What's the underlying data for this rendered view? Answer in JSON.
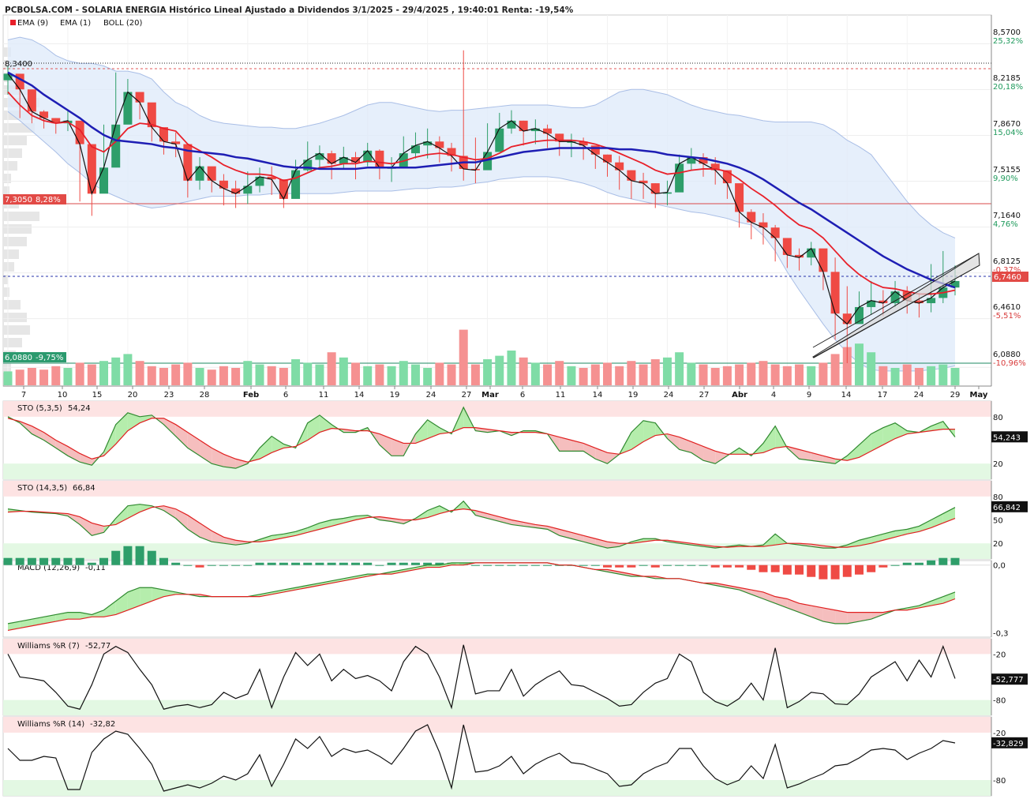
{
  "title": "PCBOLSA.COM - SOLARIA ENERGIA Histórico Lineal Ajustado a Dividendos 3/1/2025 - 29/4/2025 , 19:40:01 Renta: -19,54%",
  "legend": [
    {
      "label": "EMA (9)",
      "color": "#e8202a"
    },
    {
      "label": "EMA (1)",
      "color": "#111111"
    },
    {
      "label": "BOLL (20)",
      "color": "#1e1eb4"
    }
  ],
  "colors": {
    "up": "#2e9e6a",
    "down": "#ef4a44",
    "ema9": "#e8202a",
    "boll": "#1e1eb4",
    "band_fill": "#ddeafa",
    "band_line": "#a9bee6"
  },
  "price_axis": [
    {
      "price": "8,5700",
      "pct": "25,32%",
      "pos": true
    },
    {
      "price": "8,2185",
      "pct": "20,18%",
      "pos": true
    },
    {
      "price": "7,8670",
      "pct": "15,04%",
      "pos": true
    },
    {
      "price": "7,5155",
      "pct": "9,90%",
      "pos": true
    },
    {
      "price": "7,1640",
      "pct": "4,76%",
      "pos": true
    },
    {
      "price": "6,8125",
      "pct": "-0,37%",
      "pos": false
    },
    {
      "price": "6,4610",
      "pct": "-5,51%",
      "pos": false
    },
    {
      "price": "6,0880",
      "pct": "-10,96%",
      "pos": false
    }
  ],
  "ref_lines": {
    "max_label": "8,3400",
    "ref_label": "7,3050",
    "ref_pct": "8,28%",
    "min_label": "6,0880",
    "min_pct": "-9,75%",
    "last_label": "6,7460"
  },
  "x_ticks": [
    "7",
    "10",
    "15",
    "20",
    "23",
    "28",
    "Feb",
    "6",
    "11",
    "14",
    "19",
    "24",
    "27",
    "Mar",
    "6",
    "11",
    "14",
    "19",
    "24",
    "27",
    "Abr",
    "4",
    "9",
    "14",
    "17",
    "24",
    "29",
    "May"
  ],
  "panels": {
    "sto1": {
      "label": "STO (5,3,5)",
      "value": "54,24",
      "axis_value": "54,243",
      "ticks": [
        "80",
        "20"
      ]
    },
    "sto2": {
      "label": "STO (14,3,5)",
      "value": "66,84",
      "axis_value": "66,842",
      "ticks": [
        "80",
        "50",
        "20"
      ]
    },
    "macd": {
      "label": "MACD (12,26,9)",
      "value": "-0,11",
      "ticks": [
        "0,0",
        "-0,3"
      ]
    },
    "wr7": {
      "label": "Williams %R (7)",
      "value": "-52,77",
      "axis_value": "-52,777",
      "ticks": [
        "-20",
        "-80"
      ]
    },
    "wr14": {
      "label": "Williams %R (14)",
      "value": "-32,82",
      "axis_value": "-32,829",
      "ticks": [
        "-20",
        "-80"
      ]
    }
  },
  "chart_data": {
    "type": "candlestick",
    "x": [
      "3/1",
      "7/1",
      "8/1",
      "9/1",
      "10/1",
      "13/1",
      "14/1",
      "15/1",
      "16/1",
      "17/1",
      "20/1",
      "21/1",
      "22/1",
      "23/1",
      "24/1",
      "27/1",
      "28/1",
      "29/1",
      "30/1",
      "31/1",
      "3/2",
      "4/2",
      "5/2",
      "6/2",
      "7/2",
      "10/2",
      "11/2",
      "12/2",
      "13/2",
      "14/2",
      "17/2",
      "18/2",
      "19/2",
      "20/2",
      "21/2",
      "24/2",
      "25/2",
      "26/2",
      "27/2",
      "28/2",
      "3/3",
      "4/3",
      "5/3",
      "6/3",
      "7/3",
      "10/3",
      "11/3",
      "12/3",
      "13/3",
      "14/3",
      "17/3",
      "18/3",
      "19/3",
      "20/3",
      "21/3",
      "24/3",
      "25/3",
      "26/3",
      "27/3",
      "28/3",
      "31/3",
      "1/4",
      "2/4",
      "3/4",
      "4/4",
      "7/4",
      "8/4",
      "9/4",
      "10/4",
      "11/4",
      "14/4",
      "15/4",
      "16/4",
      "17/4",
      "22/4",
      "23/4",
      "24/4",
      "25/4",
      "28/4",
      "29/4"
    ],
    "close": [
      8.34,
      8.22,
      8.05,
      8.0,
      7.96,
      7.98,
      7.8,
      7.42,
      7.62,
      7.95,
      8.2,
      8.12,
      7.93,
      7.82,
      7.8,
      7.52,
      7.63,
      7.52,
      7.46,
      7.42,
      7.48,
      7.55,
      7.53,
      7.38,
      7.6,
      7.68,
      7.73,
      7.65,
      7.7,
      7.66,
      7.75,
      7.62,
      7.62,
      7.73,
      7.79,
      7.82,
      7.77,
      7.71,
      7.61,
      7.6,
      7.74,
      7.92,
      7.98,
      7.9,
      7.92,
      7.88,
      7.82,
      7.82,
      7.79,
      7.72,
      7.66,
      7.6,
      7.52,
      7.5,
      7.42,
      7.43,
      7.65,
      7.7,
      7.65,
      7.6,
      7.5,
      7.28,
      7.2,
      7.16,
      7.08,
      6.95,
      6.93,
      7.0,
      6.82,
      6.5,
      6.42,
      6.55,
      6.6,
      6.58,
      6.67,
      6.6,
      6.58,
      6.62,
      6.7,
      6.75
    ],
    "high": [
      8.4,
      8.3,
      8.16,
      8.06,
      8.0,
      8.06,
      7.95,
      7.6,
      7.95,
      8.35,
      8.3,
      8.2,
      8.02,
      7.92,
      7.89,
      7.61,
      7.7,
      7.6,
      7.57,
      7.52,
      7.59,
      7.62,
      7.63,
      7.49,
      7.68,
      7.82,
      7.79,
      7.75,
      7.78,
      7.74,
      7.81,
      7.76,
      7.7,
      7.86,
      7.89,
      7.92,
      7.86,
      7.81,
      8.52,
      7.85,
      7.96,
      8.04,
      8.06,
      7.98,
      7.99,
      7.95,
      7.88,
      7.88,
      7.85,
      7.78,
      7.72,
      7.71,
      7.6,
      7.58,
      7.5,
      7.52,
      7.72,
      7.77,
      7.73,
      7.7,
      7.58,
      7.38,
      7.3,
      7.27,
      7.18,
      7.03,
      7.0,
      7.05,
      6.91,
      6.93,
      6.71,
      6.67,
      6.75,
      6.68,
      6.75,
      6.71,
      6.66,
      6.88,
      6.98,
      6.87
    ],
    "low": [
      8.18,
      8.0,
      7.96,
      7.92,
      7.88,
      7.9,
      7.36,
      7.25,
      7.48,
      7.72,
      8.07,
      7.99,
      7.82,
      7.72,
      7.7,
      7.39,
      7.45,
      7.43,
      7.33,
      7.31,
      7.34,
      7.43,
      7.41,
      7.31,
      7.48,
      7.59,
      7.62,
      7.53,
      7.61,
      7.53,
      7.63,
      7.53,
      7.51,
      7.62,
      7.69,
      7.69,
      7.66,
      7.59,
      7.52,
      7.5,
      7.61,
      7.82,
      7.88,
      7.79,
      7.8,
      7.77,
      7.71,
      7.7,
      7.68,
      7.61,
      7.55,
      7.45,
      7.38,
      7.38,
      7.31,
      7.33,
      7.55,
      7.6,
      7.55,
      7.49,
      7.38,
      7.16,
      7.07,
      7.03,
      6.9,
      6.85,
      6.83,
      6.87,
      6.68,
      6.3,
      6.12,
      6.45,
      6.49,
      6.48,
      6.55,
      6.5,
      6.47,
      6.51,
      6.58,
      6.64
    ],
    "volume": [
      0.8,
      0.9,
      1.0,
      0.9,
      1.1,
      1.0,
      1.3,
      1.2,
      1.4,
      1.6,
      1.8,
      1.4,
      1.1,
      1.0,
      1.2,
      1.3,
      1.0,
      0.9,
      1.1,
      1.0,
      1.4,
      1.2,
      1.1,
      1.0,
      1.5,
      1.3,
      1.2,
      1.9,
      1.6,
      1.3,
      1.1,
      1.2,
      1.1,
      1.4,
      1.2,
      1.0,
      1.3,
      1.2,
      3.2,
      1.2,
      1.5,
      1.7,
      2.0,
      1.6,
      1.3,
      1.2,
      1.4,
      1.1,
      1.0,
      1.2,
      1.3,
      1.1,
      1.4,
      1.2,
      1.5,
      1.6,
      1.9,
      1.3,
      1.2,
      1.0,
      1.1,
      1.2,
      1.3,
      1.4,
      1.2,
      1.1,
      1.2,
      1.1,
      1.3,
      1.8,
      2.2,
      2.4,
      1.9,
      1.1,
      1.0,
      1.2,
      1.0,
      1.1,
      1.2,
      1.0
    ],
    "ema9": [
      8.2,
      8.1,
      8.02,
      7.98,
      7.96,
      7.97,
      7.91,
      7.78,
      7.74,
      7.82,
      7.92,
      7.96,
      7.95,
      7.92,
      7.9,
      7.8,
      7.75,
      7.7,
      7.64,
      7.6,
      7.57,
      7.57,
      7.56,
      7.52,
      7.54,
      7.58,
      7.62,
      7.63,
      7.65,
      7.65,
      7.67,
      7.66,
      7.65,
      7.67,
      7.7,
      7.72,
      7.73,
      7.72,
      7.7,
      7.68,
      7.69,
      7.73,
      7.78,
      7.8,
      7.82,
      7.83,
      7.83,
      7.83,
      7.82,
      7.8,
      7.77,
      7.73,
      7.69,
      7.65,
      7.6,
      7.57,
      7.58,
      7.6,
      7.61,
      7.61,
      7.59,
      7.53,
      7.46,
      7.4,
      7.33,
      7.25,
      7.18,
      7.15,
      7.08,
      6.98,
      6.88,
      6.8,
      6.74,
      6.7,
      6.69,
      6.67,
      6.65,
      6.65,
      6.66,
      6.68
    ],
    "boll_mid": [
      8.35,
      8.3,
      8.25,
      8.18,
      8.12,
      8.06,
      8.0,
      7.93,
      7.87,
      7.83,
      7.82,
      7.81,
      7.8,
      7.78,
      7.77,
      7.75,
      7.74,
      7.73,
      7.72,
      7.7,
      7.69,
      7.67,
      7.65,
      7.63,
      7.62,
      7.62,
      7.61,
      7.61,
      7.61,
      7.61,
      7.62,
      7.62,
      7.62,
      7.62,
      7.62,
      7.63,
      7.64,
      7.65,
      7.66,
      7.66,
      7.68,
      7.7,
      7.72,
      7.74,
      7.75,
      7.76,
      7.77,
      7.77,
      7.77,
      7.77,
      7.77,
      7.76,
      7.76,
      7.75,
      7.74,
      7.72,
      7.71,
      7.7,
      7.69,
      7.67,
      7.65,
      7.62,
      7.58,
      7.53,
      7.47,
      7.41,
      7.35,
      7.3,
      7.24,
      7.18,
      7.12,
      7.06,
      7.0,
      6.94,
      6.89,
      6.84,
      6.8,
      6.76,
      6.73,
      6.7
    ],
    "boll_up": [
      8.6,
      8.62,
      8.6,
      8.55,
      8.48,
      8.44,
      8.42,
      8.42,
      8.4,
      8.36,
      8.36,
      8.34,
      8.3,
      8.2,
      8.12,
      8.08,
      8.02,
      7.98,
      7.96,
      7.95,
      7.94,
      7.93,
      7.93,
      7.92,
      7.92,
      7.94,
      7.96,
      7.99,
      8.02,
      8.06,
      8.1,
      8.12,
      8.12,
      8.1,
      8.08,
      8.06,
      8.05,
      8.06,
      8.06,
      8.07,
      8.08,
      8.09,
      8.1,
      8.1,
      8.1,
      8.1,
      8.09,
      8.08,
      8.08,
      8.1,
      8.15,
      8.2,
      8.22,
      8.22,
      8.2,
      8.18,
      8.14,
      8.1,
      8.07,
      8.05,
      8.03,
      8.02,
      8.0,
      7.98,
      7.97,
      7.97,
      7.97,
      7.97,
      7.95,
      7.9,
      7.83,
      7.78,
      7.72,
      7.6,
      7.48,
      7.36,
      7.26,
      7.18,
      7.12,
      7.08
    ],
    "boll_low": [
      8.05,
      7.98,
      7.9,
      7.82,
      7.74,
      7.65,
      7.58,
      7.5,
      7.44,
      7.4,
      7.36,
      7.33,
      7.31,
      7.32,
      7.34,
      7.36,
      7.38,
      7.4,
      7.4,
      7.4,
      7.41,
      7.41,
      7.42,
      7.42,
      7.42,
      7.42,
      7.42,
      7.42,
      7.43,
      7.44,
      7.44,
      7.44,
      7.44,
      7.45,
      7.46,
      7.46,
      7.47,
      7.47,
      7.48,
      7.5,
      7.51,
      7.53,
      7.54,
      7.55,
      7.55,
      7.55,
      7.54,
      7.52,
      7.5,
      7.47,
      7.43,
      7.4,
      7.38,
      7.36,
      7.34,
      7.32,
      7.3,
      7.28,
      7.27,
      7.25,
      7.23,
      7.2,
      7.18,
      7.1,
      6.98,
      6.82,
      6.68,
      6.55,
      6.42,
      6.3,
      6.2,
      6.12,
      6.07,
      6.06,
      6.06,
      6.06,
      6.06,
      6.07,
      6.08,
      6.1
    ],
    "sto_5_3_5": {
      "k": [
        80,
        72,
        58,
        50,
        40,
        30,
        22,
        18,
        35,
        70,
        85,
        80,
        82,
        70,
        55,
        40,
        30,
        20,
        16,
        14,
        20,
        40,
        55,
        45,
        40,
        72,
        82,
        70,
        60,
        60,
        66,
        44,
        30,
        30,
        58,
        76,
        66,
        58,
        92,
        62,
        60,
        62,
        56,
        62,
        62,
        58,
        36,
        36,
        36,
        26,
        20,
        32,
        60,
        75,
        72,
        52,
        38,
        34,
        24,
        20,
        30,
        40,
        30,
        46,
        68,
        40,
        26,
        24,
        22,
        20,
        30,
        44,
        58,
        66,
        72,
        62,
        60,
        68,
        74,
        54
      ],
      "d": [
        78,
        74,
        68,
        60,
        50,
        42,
        33,
        26,
        30,
        45,
        62,
        72,
        78,
        78,
        70,
        60,
        50,
        40,
        32,
        26,
        22,
        26,
        34,
        40,
        42,
        50,
        60,
        65,
        64,
        62,
        62,
        58,
        52,
        46,
        46,
        52,
        58,
        60,
        66,
        66,
        64,
        62,
        60,
        60,
        60,
        58,
        54,
        50,
        46,
        40,
        34,
        32,
        38,
        48,
        56,
        58,
        54,
        48,
        42,
        36,
        32,
        32,
        32,
        34,
        40,
        42,
        38,
        34,
        30,
        26,
        24,
        28,
        36,
        44,
        52,
        58,
        60,
        62,
        64,
        64
      ]
    },
    "sto_14_3_5": {
      "k": [
        64,
        62,
        60,
        59,
        58,
        55,
        44,
        30,
        34,
        52,
        68,
        70,
        68,
        62,
        52,
        38,
        28,
        22,
        20,
        18,
        20,
        25,
        30,
        32,
        35,
        40,
        46,
        50,
        52,
        55,
        56,
        50,
        48,
        45,
        52,
        62,
        68,
        60,
        74,
        56,
        52,
        48,
        44,
        42,
        40,
        38,
        30,
        26,
        22,
        18,
        14,
        16,
        22,
        26,
        26,
        22,
        20,
        18,
        16,
        14,
        16,
        18,
        16,
        18,
        32,
        20,
        18,
        16,
        14,
        14,
        18,
        24,
        28,
        32,
        36,
        38,
        42,
        50,
        58,
        66
      ],
      "d": [
        60,
        61,
        61,
        60,
        59,
        58,
        54,
        46,
        42,
        44,
        52,
        60,
        66,
        68,
        64,
        56,
        46,
        36,
        28,
        24,
        22,
        22,
        24,
        27,
        30,
        34,
        38,
        42,
        46,
        50,
        53,
        54,
        52,
        50,
        50,
        53,
        58,
        62,
        64,
        62,
        58,
        54,
        50,
        47,
        44,
        42,
        38,
        34,
        30,
        26,
        22,
        20,
        20,
        22,
        24,
        24,
        22,
        20,
        18,
        16,
        15,
        16,
        16,
        16,
        18,
        20,
        20,
        19,
        17,
        15,
        15,
        17,
        20,
        24,
        28,
        32,
        35,
        40,
        46,
        52
      ]
    },
    "macd": {
      "macd": [
        -0.26,
        -0.25,
        -0.24,
        -0.23,
        -0.22,
        -0.21,
        -0.21,
        -0.22,
        -0.2,
        -0.16,
        -0.12,
        -0.1,
        -0.1,
        -0.11,
        -0.12,
        -0.13,
        -0.14,
        -0.14,
        -0.14,
        -0.14,
        -0.14,
        -0.13,
        -0.12,
        -0.11,
        -0.1,
        -0.09,
        -0.08,
        -0.07,
        -0.06,
        -0.05,
        -0.04,
        -0.04,
        -0.03,
        -0.02,
        -0.01,
        0.0,
        0.0,
        0.01,
        0.01,
        0.01,
        0.01,
        0.01,
        0.01,
        0.01,
        0.01,
        0.01,
        0.0,
        0.0,
        -0.01,
        -0.02,
        -0.03,
        -0.04,
        -0.05,
        -0.05,
        -0.06,
        -0.06,
        -0.06,
        -0.07,
        -0.08,
        -0.09,
        -0.1,
        -0.11,
        -0.13,
        -0.15,
        -0.17,
        -0.19,
        -0.21,
        -0.23,
        -0.25,
        -0.26,
        -0.26,
        -0.25,
        -0.24,
        -0.22,
        -0.2,
        -0.19,
        -0.18,
        -0.16,
        -0.14,
        -0.12
      ],
      "signal": [
        -0.29,
        -0.28,
        -0.27,
        -0.26,
        -0.25,
        -0.24,
        -0.24,
        -0.23,
        -0.23,
        -0.22,
        -0.2,
        -0.18,
        -0.16,
        -0.14,
        -0.13,
        -0.13,
        -0.13,
        -0.14,
        -0.14,
        -0.14,
        -0.14,
        -0.14,
        -0.13,
        -0.12,
        -0.11,
        -0.1,
        -0.09,
        -0.08,
        -0.07,
        -0.06,
        -0.05,
        -0.04,
        -0.04,
        -0.03,
        -0.02,
        -0.01,
        -0.01,
        0.0,
        0.0,
        0.01,
        0.01,
        0.01,
        0.01,
        0.01,
        0.01,
        0.01,
        0.0,
        0.0,
        -0.01,
        -0.02,
        -0.02,
        -0.03,
        -0.04,
        -0.05,
        -0.05,
        -0.06,
        -0.06,
        -0.07,
        -0.08,
        -0.08,
        -0.09,
        -0.1,
        -0.11,
        -0.12,
        -0.14,
        -0.15,
        -0.17,
        -0.18,
        -0.19,
        -0.2,
        -0.21,
        -0.21,
        -0.21,
        -0.21,
        -0.2,
        -0.2,
        -0.19,
        -0.18,
        -0.17,
        -0.15
      ]
    },
    "williams_7": [
      -20,
      -50,
      -52,
      -55,
      -70,
      -88,
      -92,
      -60,
      -20,
      -10,
      -18,
      -40,
      -60,
      -92,
      -88,
      -86,
      -90,
      -86,
      -70,
      -78,
      -72,
      -40,
      -90,
      -50,
      -18,
      -35,
      -20,
      -55,
      -40,
      -52,
      -48,
      -55,
      -68,
      -30,
      -10,
      -20,
      -50,
      -90,
      -8,
      -72,
      -68,
      -68,
      -40,
      -75,
      -60,
      -50,
      -42,
      -60,
      -62,
      -70,
      -78,
      -88,
      -86,
      -70,
      -58,
      -52,
      -20,
      -30,
      -70,
      -82,
      -88,
      -78,
      -58,
      -80,
      -12,
      -90,
      -82,
      -70,
      -72,
      -85,
      -86,
      -72,
      -50,
      -40,
      -30,
      -55,
      -28,
      -50,
      -10,
      -52
    ],
    "williams_14": [
      -40,
      -55,
      -55,
      -50,
      -52,
      -92,
      -92,
      -45,
      -28,
      -18,
      -22,
      -40,
      -60,
      -94,
      -90,
      -86,
      -90,
      -84,
      -75,
      -80,
      -72,
      -48,
      -88,
      -60,
      -28,
      -40,
      -25,
      -50,
      -40,
      -45,
      -42,
      -50,
      -60,
      -40,
      -18,
      -10,
      -45,
      -90,
      -10,
      -70,
      -68,
      -62,
      -50,
      -72,
      -60,
      -52,
      -46,
      -58,
      -60,
      -66,
      -72,
      -88,
      -86,
      -72,
      -64,
      -58,
      -40,
      -40,
      -62,
      -78,
      -86,
      -80,
      -62,
      -78,
      -35,
      -90,
      -85,
      -78,
      -72,
      -62,
      -60,
      -52,
      -42,
      -40,
      -42,
      -54,
      -46,
      -40,
      -30,
      -33
    ]
  }
}
